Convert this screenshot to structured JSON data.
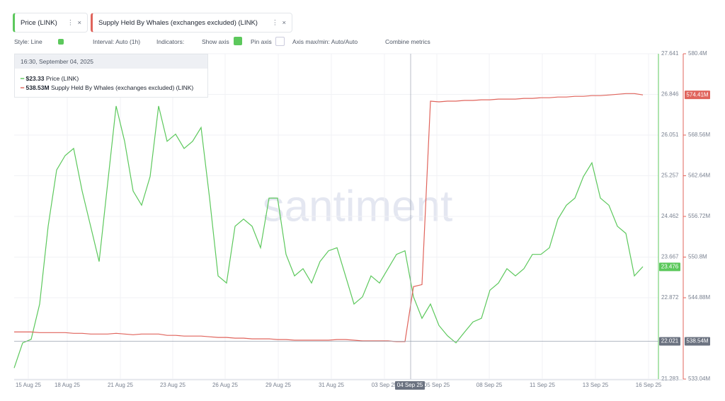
{
  "toolbar": {
    "metrics": [
      "Price (LINK)",
      "Supply Held By Whales (exchanges excluded) (LINK)"
    ],
    "style": "Style: Line",
    "interval": "Interval: Auto (1h)",
    "indicators": "Indicators:",
    "show_axis": "Show axis",
    "pin_axis": "Pin axis",
    "axis_range": "Axis max/min: Auto/Auto",
    "combine": "Combine metrics"
  },
  "watermark": "santiment",
  "tooltip": {
    "time": "16:30, September 04, 2025",
    "rows": [
      {
        "value": "$23.33",
        "name": "Price (LINK)"
      },
      {
        "value": "538.53M",
        "name": "Supply Held By Whales (exchanges excluded) (LINK)"
      }
    ]
  },
  "chart_data": {
    "type": "line",
    "xticks": [
      "15 Aug 25",
      "18 Aug 25",
      "21 Aug 25",
      "23 Aug 25",
      "26 Aug 25",
      "29 Aug 25",
      "31 Aug 25",
      "03 Sep 25",
      "05 Sep 25",
      "08 Sep 25",
      "11 Sep 25",
      "13 Sep 25",
      "16 Sep 25"
    ],
    "ylim": [
      21.283,
      27.641
    ],
    "yticks": [
      21.283,
      22.872,
      23.667,
      24.462,
      25.257,
      26.051,
      26.846,
      27.641
    ],
    "y2lim": [
      533.04,
      580.4
    ],
    "y2ticks": [
      {
        "value": 533.04,
        "label": "533.04M"
      },
      {
        "value": 544.88,
        "label": "544.88M"
      },
      {
        "value": 550.8,
        "label": "550.8M"
      },
      {
        "value": 556.72,
        "label": "556.72M"
      },
      {
        "value": 562.64,
        "label": "562.64M"
      },
      {
        "value": 568.56,
        "label": "568.56M"
      },
      {
        "value": 580.4,
        "label": "580.4M"
      }
    ],
    "grid": true,
    "series": [
      {
        "name": "Price (LINK)",
        "color": "#5cc85c",
        "last": 23.476,
        "values": [
          21.5,
          21.99,
          22.06,
          22.75,
          24.27,
          25.37,
          25.65,
          25.79,
          24.96,
          24.27,
          23.58,
          25.1,
          26.62,
          25.93,
          24.96,
          24.68,
          25.24,
          26.62,
          25.93,
          26.07,
          25.79,
          25.93,
          26.2,
          24.82,
          23.3,
          23.16,
          24.27,
          24.41,
          24.27,
          23.85,
          24.82,
          24.82,
          23.72,
          23.3,
          23.44,
          23.16,
          23.58,
          23.79,
          23.85,
          23.3,
          22.75,
          22.89,
          23.3,
          23.16,
          23.44,
          23.72,
          23.79,
          22.89,
          22.47,
          22.75,
          22.33,
          22.13,
          21.99,
          22.2,
          22.4,
          22.47,
          23.02,
          23.16,
          23.44,
          23.3,
          23.44,
          23.72,
          23.72,
          23.85,
          24.41,
          24.68,
          24.82,
          25.24,
          25.51,
          24.82,
          24.68,
          24.27,
          24.13,
          23.3,
          23.48
        ]
      },
      {
        "name": "Supply Held By Whales (exchanges excluded) (LINK)",
        "color": "#e0645c",
        "axis": "y2",
        "last": {
          "value": 574.41,
          "label": "574.41M"
        },
        "values": [
          539.9,
          539.9,
          539.9,
          539.8,
          539.8,
          539.8,
          539.8,
          539.7,
          539.7,
          539.6,
          539.6,
          539.6,
          539.7,
          539.6,
          539.5,
          539.6,
          539.6,
          539.6,
          539.4,
          539.4,
          539.3,
          539.3,
          539.3,
          539.2,
          539.1,
          539.1,
          539.0,
          539.0,
          538.9,
          538.9,
          538.9,
          538.8,
          538.8,
          538.7,
          538.7,
          538.7,
          538.7,
          538.7,
          538.8,
          538.8,
          538.7,
          538.6,
          538.6,
          538.6,
          538.6,
          538.5,
          538.5,
          546.5,
          546.8,
          573.5,
          573.4,
          573.5,
          573.5,
          573.6,
          573.6,
          573.7,
          573.7,
          573.8,
          573.8,
          573.8,
          573.9,
          573.9,
          574.0,
          574.0,
          574.1,
          574.1,
          574.2,
          574.2,
          574.3,
          574.3,
          574.4,
          574.5,
          574.6,
          574.6,
          574.41
        ]
      }
    ],
    "crosshair": {
      "x_label": "04 Sep 25",
      "y": 22.021,
      "y2": {
        "value": 538.54,
        "label": "538.54M"
      }
    }
  }
}
